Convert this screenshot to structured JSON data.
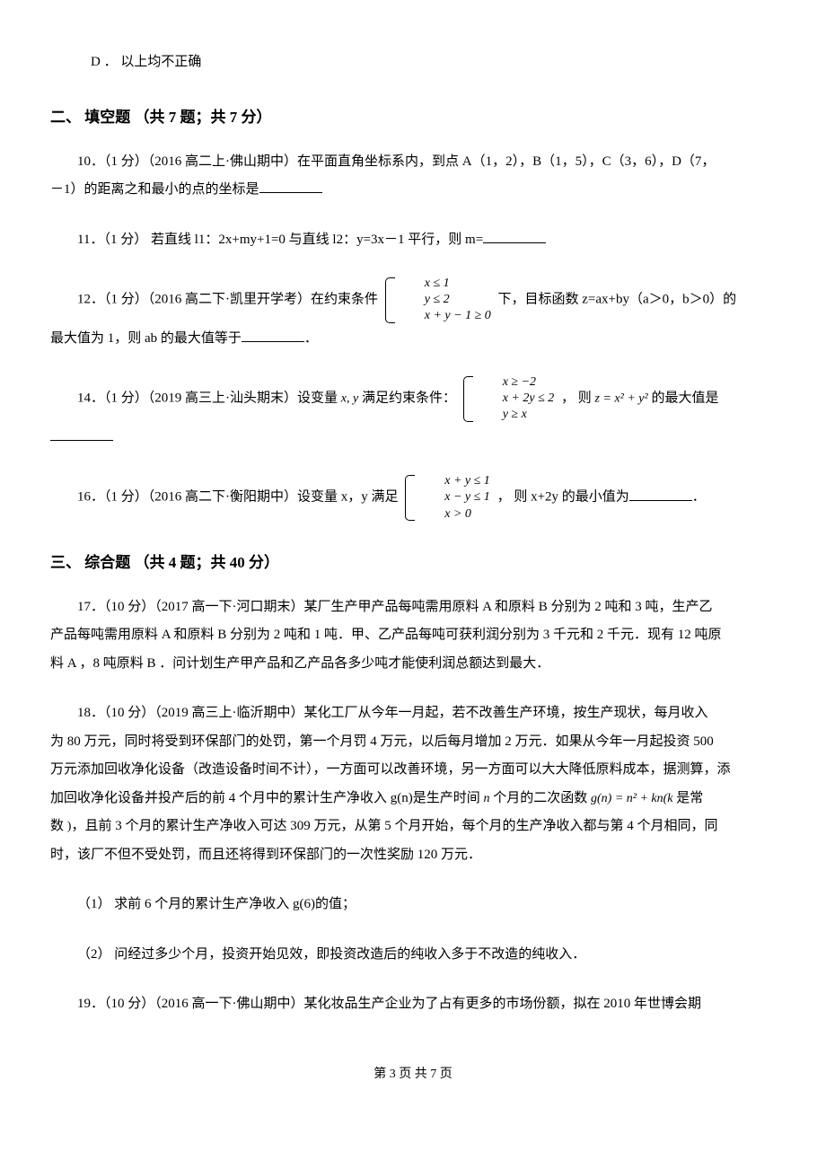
{
  "optionD": "D ． 以上均不正确",
  "section2": "二、 填空题 （共 7 题；共 7 分）",
  "q10": {
    "line1": "10．（1 分）（2016 高二上·佛山期中）在平面直角坐标系内，到点 A（1，2），B（1，5），C（3，6），D（7，",
    "line2": "－1）的距离之和最小的点的坐标是"
  },
  "q11": "11．（1 分） 若直线 l1：2x+my+1=0 与直线 l2：y=3x－1 平行，则 m=",
  "q12": {
    "pre": "12．（1 分）（2016 高二下·凯里开学考）在约束条件 ",
    "sys": [
      "x ≤ 1",
      "y ≤ 2",
      "x + y − 1 ≥ 0"
    ],
    "post": " 下，目标函数 z=ax+by（a＞0，b＞0）的",
    "line2": "最大值为 1，则 ab 的最大值等于",
    "line2end": "．"
  },
  "q14": {
    "pre": "14．（1 分）（2019 高三上·汕头期末）设变量 ",
    "xy": "x, y",
    "mid": " 满足约束条件：",
    "sys": [
      "x ≥ −2",
      "x + 2y ≤ 2",
      "y ≥ x"
    ],
    "post1": " ， 则 ",
    "z": "z = x² + y²",
    "post2": " 的最大值是"
  },
  "q16": {
    "pre": "16．（1 分）（2016 高二下·衡阳期中）设变量 x，y 满足 ",
    "sys": [
      "x + y ≤ 1",
      "x − y ≤ 1",
      "x > 0"
    ],
    "post": " ， 则 x+2y 的最小值为",
    "end": "．"
  },
  "section3": "三、 综合题 （共 4 题；共 40 分）",
  "q17": {
    "l1": "17．（10 分）（2017 高一下·河口期末）某厂生产甲产品每吨需用原料 A 和原料 B 分别为 2 吨和 3 吨，生产乙",
    "l2": "产品每吨需用原料 A 和原料 B 分别为 2 吨和 1 吨．甲、乙产品每吨可获利润分别为 3 千元和 2 千元．现有 12 吨原",
    "l3": "料 A ，8 吨原料 B ．问计划生产甲产品和乙产品各多少吨才能使利润总额达到最大．"
  },
  "q18": {
    "l1": "18．（10 分）（2019 高三上·临沂期中）某化工厂从今年一月起，若不改善生产环境，按生产现状，每月收入",
    "l2": "为 80 万元，同时将受到环保部门的处罚，第一个月罚 4 万元，以后每月增加 2 万元．如果从今年一月起投资 500",
    "l3": "万元添加回收净化设备（改造设备时间不计），一方面可以改善环境，另一方面可以大大降低原料成本，据测算，添",
    "l4a": "加回收净化设备并投产后的前 4 个月中的累计生产净收入 g(n)是生产时间 ",
    "l4n": "n",
    "l4b": " 个月的二次函数 ",
    "l4g": "g(n) = n² + kn(k",
    "l4c": " 是常",
    "l5a": "数 ",
    "l5b": "，且前 3 个月的累计生产净收入可达 309 万元，从第 5 个月开始，每个月的生产净收入都与第 4 个月相同，同",
    "l6": "时，该厂不但不受处罚，而且还将得到环保部门的一次性奖励 120 万元．",
    "s1": "（1） 求前 6 个月的累计生产净收入 g(6)的值；",
    "s2": "（2） 问经过多少个月，投资开始见效，即投资改造后的纯收入多于不改造的纯收入．"
  },
  "q19": "19．（10 分）（2016 高一下·佛山期中）某化妆品生产企业为了占有更多的市场份额，拟在 2010 年世博会期",
  "footer": "第 3 页 共 7 页"
}
